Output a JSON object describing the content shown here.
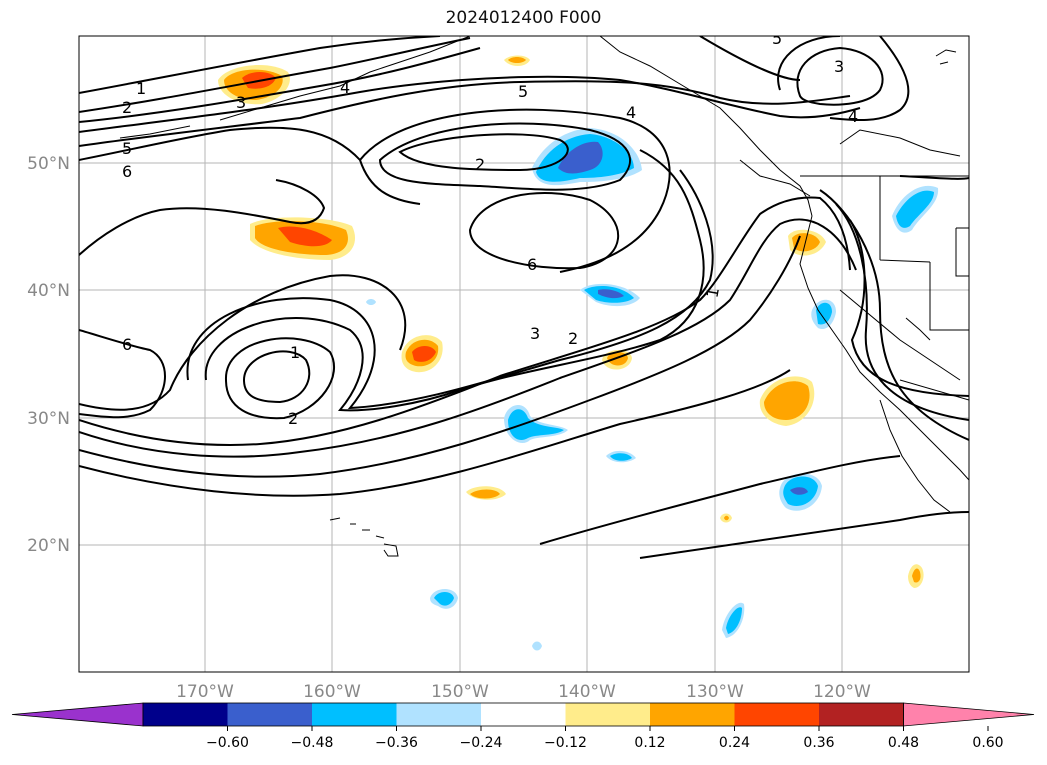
{
  "title": "2024012400 F000",
  "lat_labels": [
    "50°N",
    "40°N",
    "30°N",
    "20°N"
  ],
  "lon_labels": [
    "170°W",
    "160°W",
    "150°W",
    "140°W",
    "130°W",
    "120°W"
  ],
  "contour_labels": [
    "1",
    "2",
    "3",
    "4",
    "5",
    "6"
  ],
  "colorbar": {
    "colors": [
      "#9a32cd",
      "#00008b",
      "#3a5fcd",
      "#00bfff",
      "#b0e2ff",
      "#ffffff",
      "#ffec8b",
      "#ffa500",
      "#ff4500",
      "#b22222",
      "#ff82ab"
    ],
    "under_color": "#9a32cd",
    "over_color": "#ff82ab",
    "ticks": [
      "−0.60",
      "−0.48",
      "−0.36",
      "−0.24",
      "−0.12",
      "0.12",
      "0.24",
      "0.36",
      "0.48",
      "0.60"
    ]
  }
}
